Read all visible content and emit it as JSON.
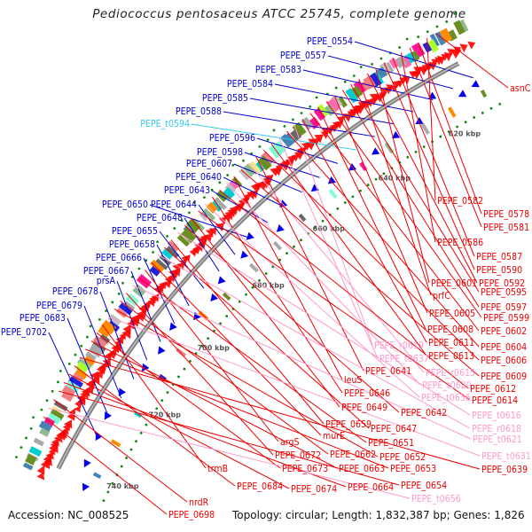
{
  "title": "Pediococcus pentosaceus ATCC 25745, complete genome",
  "footer": {
    "accession": "Accession: NC_008525",
    "topology": "Topology: circular; Length: 1,832,387 bp; Genes: 1,826"
  },
  "colors": {
    "forward_label": "#0000cc",
    "forward_trna_label": "#33ccee",
    "reverse_label": "#ee0000",
    "reverse_rna_label": "#ff99cc",
    "backbone": "#808080",
    "reverse_cds": "#ff0000",
    "forward_cds": "#0000ee",
    "gc_tick": "#118811"
  },
  "kbp_ticks": [
    "620 kbp",
    "640 kbp",
    "660 kbp",
    "680 kbp",
    "700 kbp",
    "720 kbp",
    "740 kbp"
  ],
  "forward_labels": [
    {
      "text": "PEPE_0554",
      "type": "cds"
    },
    {
      "text": "PEPE_0557",
      "type": "cds"
    },
    {
      "text": "PEPE_0583",
      "type": "cds"
    },
    {
      "text": "PEPE_0584",
      "type": "cds"
    },
    {
      "text": "PEPE_0585",
      "type": "cds"
    },
    {
      "text": "PEPE_0588",
      "type": "cds"
    },
    {
      "text": "PEPE_t0594",
      "type": "trna"
    },
    {
      "text": "PEPE_0596",
      "type": "cds"
    },
    {
      "text": "PEPE_0598",
      "type": "cds"
    },
    {
      "text": "PEPE_0607",
      "type": "cds"
    },
    {
      "text": "PEPE_0640",
      "type": "cds"
    },
    {
      "text": "PEPE_0643",
      "type": "cds"
    },
    {
      "text": "PEPE_0650",
      "type": "cds"
    },
    {
      "text": "PEPE_0644",
      "type": "cds"
    },
    {
      "text": "PEPE_0648",
      "type": "cds"
    },
    {
      "text": "PEPE_0655",
      "type": "cds"
    },
    {
      "text": "PEPE_0658",
      "type": "cds"
    },
    {
      "text": "PEPE_0666",
      "type": "cds"
    },
    {
      "text": "PEPE_0667",
      "type": "cds"
    },
    {
      "text": "prsA",
      "type": "cds"
    },
    {
      "text": "PEPE_0678",
      "type": "cds"
    },
    {
      "text": "PEPE_0679",
      "type": "cds"
    },
    {
      "text": "PEPE_0683",
      "type": "cds"
    },
    {
      "text": "PEPE_0702",
      "type": "cds"
    }
  ],
  "reverse_labels": [
    {
      "text": "asnC",
      "type": "cds"
    },
    {
      "text": "PEPE_0582",
      "type": "cds"
    },
    {
      "text": "PEPE_0578",
      "type": "cds"
    },
    {
      "text": "PEPE_0581",
      "type": "cds"
    },
    {
      "text": "PEPE_0586",
      "type": "cds"
    },
    {
      "text": "PEPE_0587",
      "type": "cds"
    },
    {
      "text": "PEPE_0590",
      "type": "cds"
    },
    {
      "text": "PEPE_0601",
      "type": "cds"
    },
    {
      "text": "PEPE_0592",
      "type": "cds"
    },
    {
      "text": "prfC",
      "type": "cds"
    },
    {
      "text": "PEPE_0595",
      "type": "cds"
    },
    {
      "text": "PEPE_0597",
      "type": "cds"
    },
    {
      "text": "PEPE_0605",
      "type": "cds"
    },
    {
      "text": "PEPE_0599",
      "type": "cds"
    },
    {
      "text": "PEPE_0608",
      "type": "cds"
    },
    {
      "text": "PEPE_0602",
      "type": "cds"
    },
    {
      "text": "PEPE_0611",
      "type": "cds"
    },
    {
      "text": "PEPE_r0619",
      "type": "rna"
    },
    {
      "text": "PEPE_0604",
      "type": "cds"
    },
    {
      "text": "PEPE_t0637",
      "type": "rna"
    },
    {
      "text": "PEPE_0613",
      "type": "cds"
    },
    {
      "text": "PEPE_0606",
      "type": "cds"
    },
    {
      "text": "PEPE_0641",
      "type": "cds"
    },
    {
      "text": "PEPE_r0615",
      "type": "rna"
    },
    {
      "text": "PEPE_0609",
      "type": "cds"
    },
    {
      "text": "leuS",
      "type": "cds"
    },
    {
      "text": "PEPE_t0620",
      "type": "rna"
    },
    {
      "text": "PEPE_0612",
      "type": "cds"
    },
    {
      "text": "PEPE_0646",
      "type": "cds"
    },
    {
      "text": "PEPE_t0636",
      "type": "rna"
    },
    {
      "text": "PEPE_0614",
      "type": "cds"
    },
    {
      "text": "PEPE_0649",
      "type": "cds"
    },
    {
      "text": "PEPE_0642",
      "type": "cds"
    },
    {
      "text": "PEPE_t0616",
      "type": "rna"
    },
    {
      "text": "PEPE_0659",
      "type": "cds"
    },
    {
      "text": "PEPE_0647",
      "type": "cds"
    },
    {
      "text": "PEPE_r0618",
      "type": "rna"
    },
    {
      "text": "murE",
      "type": "cds"
    },
    {
      "text": "argS",
      "type": "cds"
    },
    {
      "text": "PEPE_0651",
      "type": "cds"
    },
    {
      "text": "PEPE_t0621",
      "type": "rna"
    },
    {
      "text": "PEPE_0672",
      "type": "cds"
    },
    {
      "text": "PEPE_0662",
      "type": "cds"
    },
    {
      "text": "PEPE_0652",
      "type": "cds"
    },
    {
      "text": "PEPE_t0631",
      "type": "rna"
    },
    {
      "text": "trmB",
      "type": "cds"
    },
    {
      "text": "PEPE_0673",
      "type": "cds"
    },
    {
      "text": "PEPE_0663",
      "type": "cds"
    },
    {
      "text": "PEPE_0653",
      "type": "cds"
    },
    {
      "text": "PEPE_0639",
      "type": "cds"
    },
    {
      "text": "PEPE_0684",
      "type": "cds"
    },
    {
      "text": "PEPE_0674",
      "type": "cds"
    },
    {
      "text": "PEPE_0664",
      "type": "cds"
    },
    {
      "text": "PEPE_0654",
      "type": "cds"
    },
    {
      "text": "nrdR",
      "type": "cds"
    },
    {
      "text": "PEPE_t0656",
      "type": "rna"
    },
    {
      "text": "PEPE_0698",
      "type": "cds"
    }
  ]
}
